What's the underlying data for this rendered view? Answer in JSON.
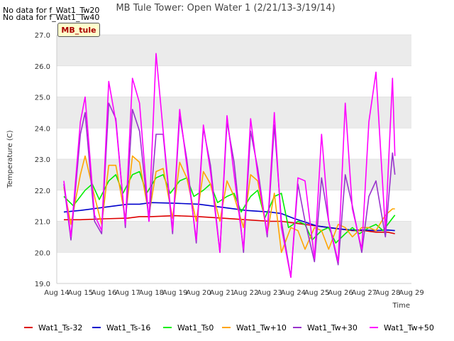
{
  "chart_data": {
    "type": "line",
    "title": "MB Tule Tower: Open Water 1 (2/21/13-3/19/14)",
    "xlabel": "Time",
    "ylabel": "Temperature (C)",
    "ylim": [
      19.0,
      27.0
    ],
    "yticks": [
      "19.0",
      "20.0",
      "21.0",
      "22.0",
      "23.0",
      "24.0",
      "25.0",
      "26.0",
      "27.0"
    ],
    "xlim": [
      14,
      29
    ],
    "xticks": [
      "Aug 14",
      "Aug 15",
      "Aug 16",
      "Aug 17",
      "Aug 18",
      "Aug 19",
      "Aug 20",
      "Aug 21",
      "Aug 22",
      "Aug 23",
      "Aug 24",
      "Aug 25",
      "Aug 26",
      "Aug 27",
      "Aug 28",
      "Aug 29"
    ],
    "grid": true,
    "legend_position": "bottom",
    "series": [
      {
        "name": "Wat1_Ts-32",
        "color": "#dd0000",
        "x": [
          14.3,
          15,
          16,
          17,
          17.5,
          18,
          19,
          20,
          21,
          22,
          23,
          23.5,
          24,
          25,
          26,
          26.5,
          27,
          27.5,
          28,
          28.3
        ],
        "y": [
          21.05,
          21.05,
          21.08,
          21.1,
          21.15,
          21.15,
          21.18,
          21.15,
          21.1,
          21.05,
          21.0,
          21.0,
          20.95,
          20.85,
          20.75,
          20.7,
          20.7,
          20.65,
          20.65,
          20.6
        ]
      },
      {
        "name": "Wat1_Ts-16",
        "color": "#0000cc",
        "x": [
          14.3,
          15,
          16,
          17,
          17.5,
          18,
          19,
          20,
          21,
          22,
          23,
          23.5,
          24,
          25,
          26,
          26.5,
          27,
          27.5,
          28,
          28.3
        ],
        "y": [
          21.3,
          21.35,
          21.45,
          21.55,
          21.55,
          21.6,
          21.58,
          21.55,
          21.45,
          21.35,
          21.3,
          21.25,
          21.1,
          20.85,
          20.75,
          20.72,
          20.72,
          20.7,
          20.72,
          20.7
        ]
      },
      {
        "name": "Wat1_Ts0",
        "color": "#00ee00",
        "x": [
          14.3,
          14.7,
          15.2,
          15.5,
          15.8,
          16.2,
          16.5,
          16.8,
          17.2,
          17.5,
          17.8,
          18.2,
          18.5,
          18.8,
          19.2,
          19.5,
          19.8,
          20.2,
          20.5,
          20.8,
          21.2,
          21.5,
          21.8,
          22.2,
          22.5,
          22.8,
          23.2,
          23.5,
          23.8,
          24.2,
          24.5,
          24.8,
          25.2,
          25.5,
          25.8,
          26.2,
          26.5,
          26.8,
          27.2,
          27.5,
          27.8,
          28.2,
          28.3
        ],
        "y": [
          21.8,
          21.5,
          22.0,
          22.2,
          21.7,
          22.3,
          22.5,
          21.9,
          22.5,
          22.6,
          21.9,
          22.4,
          22.5,
          21.9,
          22.3,
          22.4,
          21.8,
          22.0,
          22.2,
          21.6,
          21.8,
          21.9,
          21.3,
          21.8,
          22.0,
          21.1,
          21.8,
          21.9,
          20.8,
          21.0,
          20.9,
          20.4,
          20.7,
          20.8,
          20.3,
          20.6,
          20.8,
          20.6,
          20.8,
          20.9,
          20.7,
          21.1,
          21.2
        ]
      },
      {
        "name": "Wat1_Tw+10",
        "color": "#ffa500",
        "x": [
          14.3,
          14.6,
          15.0,
          15.2,
          15.6,
          15.9,
          16.2,
          16.5,
          16.9,
          17.2,
          17.5,
          17.9,
          18.2,
          18.5,
          18.9,
          19.2,
          19.5,
          19.9,
          20.2,
          20.5,
          20.9,
          21.2,
          21.5,
          21.9,
          22.2,
          22.5,
          22.9,
          23.2,
          23.5,
          23.9,
          24.2,
          24.5,
          24.9,
          25.2,
          25.5,
          25.9,
          26.2,
          26.5,
          26.9,
          27.2,
          27.5,
          27.9,
          28.2,
          28.3
        ],
        "y": [
          22.1,
          20.9,
          22.5,
          23.1,
          21.8,
          20.9,
          22.8,
          22.8,
          21.1,
          23.1,
          22.9,
          21.2,
          22.6,
          22.7,
          21.1,
          22.9,
          22.4,
          21.0,
          22.6,
          22.2,
          21.0,
          22.3,
          21.8,
          20.8,
          22.5,
          22.3,
          20.6,
          21.9,
          20.0,
          20.8,
          20.7,
          20.1,
          20.8,
          20.7,
          20.1,
          20.9,
          20.8,
          20.5,
          20.8,
          20.8,
          20.7,
          21.2,
          21.4,
          21.4
        ]
      },
      {
        "name": "Wat1_Tw+30",
        "color": "#9933cc",
        "x": [
          14.3,
          14.6,
          15.0,
          15.2,
          15.6,
          15.9,
          16.2,
          16.5,
          16.9,
          17.2,
          17.5,
          17.9,
          18.2,
          18.5,
          18.9,
          19.2,
          19.5,
          19.9,
          20.2,
          20.5,
          20.9,
          21.2,
          21.5,
          21.9,
          22.2,
          22.5,
          22.9,
          23.2,
          23.5,
          23.9,
          24.2,
          24.5,
          24.9,
          25.2,
          25.5,
          25.9,
          26.2,
          26.5,
          26.9,
          27.2,
          27.5,
          27.9,
          28.2,
          28.3
        ],
        "y": [
          22.2,
          20.4,
          23.8,
          24.5,
          21.0,
          20.6,
          24.8,
          24.3,
          20.8,
          24.6,
          23.9,
          21.0,
          23.8,
          23.8,
          20.6,
          24.4,
          23.0,
          20.3,
          24.0,
          22.8,
          20.0,
          24.2,
          22.9,
          20.0,
          23.9,
          22.7,
          20.5,
          24.1,
          21.0,
          19.2,
          22.2,
          21.0,
          19.7,
          22.4,
          21.0,
          19.6,
          22.5,
          21.5,
          20.0,
          21.8,
          22.3,
          20.5,
          23.2,
          22.5
        ]
      },
      {
        "name": "Wat1_Tw+50",
        "color": "#ff00ff",
        "x": [
          14.3,
          14.6,
          15.0,
          15.2,
          15.6,
          15.9,
          16.2,
          16.5,
          16.9,
          17.2,
          17.5,
          17.9,
          18.2,
          18.5,
          18.9,
          19.2,
          19.5,
          19.9,
          20.2,
          20.5,
          20.9,
          21.2,
          21.5,
          21.9,
          22.2,
          22.5,
          22.9,
          23.2,
          23.5,
          23.9,
          24.2,
          24.5,
          24.9,
          25.2,
          25.5,
          25.9,
          26.2,
          26.5,
          26.9,
          27.2,
          27.5,
          27.9,
          28.2,
          28.3
        ],
        "y": [
          22.3,
          20.5,
          24.2,
          25.0,
          21.2,
          20.7,
          25.5,
          24.2,
          20.9,
          25.6,
          24.8,
          21.0,
          26.4,
          23.9,
          20.7,
          24.6,
          22.8,
          20.4,
          24.1,
          22.6,
          20.0,
          24.4,
          22.5,
          20.1,
          24.3,
          22.5,
          20.6,
          24.5,
          20.8,
          19.2,
          22.4,
          22.3,
          19.8,
          23.8,
          21.0,
          19.7,
          24.8,
          21.4,
          20.1,
          24.2,
          25.8,
          20.7,
          25.6,
          23.1
        ]
      }
    ]
  },
  "overlay": {
    "no_data_1": "No data for f_Wat1_Tw20",
    "no_data_2": "No data for f_Wat1_Tw40",
    "station_tag": "MB_tule"
  }
}
